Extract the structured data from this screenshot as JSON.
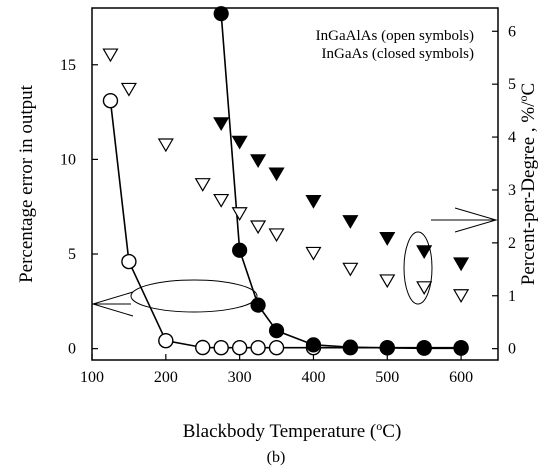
{
  "chart_data": {
    "type": "scatter",
    "x_axis": {
      "label_main": "Blackbody Temperature (",
      "label_unit_sup": "o",
      "label_unit_tail": "C)",
      "ticks": [
        100,
        200,
        300,
        400,
        500,
        600
      ],
      "range": [
        100,
        650
      ]
    },
    "y_left_axis": {
      "label": "Percentage error in output",
      "ticks": [
        0,
        5,
        10,
        15
      ],
      "range": [
        -0.6,
        18
      ]
    },
    "y_right_axis": {
      "label": "Percent-per-Degree , %/",
      "label_unit_sup": "o",
      "label_unit_tail": "C",
      "ticks": [
        0,
        1,
        2,
        3,
        4,
        5,
        6
      ],
      "range": [
        -0.2146,
        6.44
      ]
    },
    "legend": {
      "line1": "InGaAlAs (open symbols)",
      "line2": "InGaAs (closed symbols)",
      "position": "top-right"
    },
    "series": [
      {
        "name": "InGaAlAs",
        "kind": "percentage-error",
        "axis": "left",
        "symbol": "open-circle",
        "connected": true,
        "points": [
          {
            "x": 125,
            "y": 13.1
          },
          {
            "x": 150,
            "y": 4.6
          },
          {
            "x": 200,
            "y": 0.42
          },
          {
            "x": 250,
            "y": 0.06
          },
          {
            "x": 275,
            "y": 0.05
          },
          {
            "x": 300,
            "y": 0.05
          },
          {
            "x": 325,
            "y": 0.05
          },
          {
            "x": 350,
            "y": 0.05
          },
          {
            "x": 400,
            "y": 0.05
          },
          {
            "x": 450,
            "y": 0.05
          },
          {
            "x": 500,
            "y": 0.05
          },
          {
            "x": 550,
            "y": 0.05
          },
          {
            "x": 600,
            "y": 0.05
          }
        ]
      },
      {
        "name": "InGaAs",
        "kind": "percentage-error",
        "axis": "left",
        "symbol": "filled-circle",
        "connected": true,
        "points": [
          {
            "x": 275,
            "y": 17.7
          },
          {
            "x": 300,
            "y": 5.2
          },
          {
            "x": 325,
            "y": 2.3
          },
          {
            "x": 350,
            "y": 0.95
          },
          {
            "x": 400,
            "y": 0.2
          },
          {
            "x": 450,
            "y": 0.08
          },
          {
            "x": 500,
            "y": 0.04
          },
          {
            "x": 550,
            "y": 0.02
          },
          {
            "x": 600,
            "y": 0.02
          }
        ]
      },
      {
        "name": "InGaAlAs",
        "kind": "percent-per-degree",
        "axis": "right",
        "symbol": "open-triangle-down",
        "connected": false,
        "points": [
          {
            "x": 125,
            "y": 5.55
          },
          {
            "x": 150,
            "y": 4.9
          },
          {
            "x": 200,
            "y": 3.85
          },
          {
            "x": 250,
            "y": 3.1
          },
          {
            "x": 275,
            "y": 2.8
          },
          {
            "x": 300,
            "y": 2.55
          },
          {
            "x": 325,
            "y": 2.3
          },
          {
            "x": 350,
            "y": 2.15
          },
          {
            "x": 400,
            "y": 1.8
          },
          {
            "x": 450,
            "y": 1.5
          },
          {
            "x": 500,
            "y": 1.28
          },
          {
            "x": 550,
            "y": 1.15
          },
          {
            "x": 600,
            "y": 1.0
          }
        ]
      },
      {
        "name": "InGaAs",
        "kind": "percent-per-degree",
        "axis": "right",
        "symbol": "filled-triangle-down",
        "connected": false,
        "points": [
          {
            "x": 275,
            "y": 4.25
          },
          {
            "x": 300,
            "y": 3.9
          },
          {
            "x": 325,
            "y": 3.55
          },
          {
            "x": 350,
            "y": 3.3
          },
          {
            "x": 400,
            "y": 2.78
          },
          {
            "x": 450,
            "y": 2.4
          },
          {
            "x": 500,
            "y": 2.08
          },
          {
            "x": 550,
            "y": 1.83
          },
          {
            "x": 600,
            "y": 1.6
          }
        ]
      }
    ],
    "caption": "(b)",
    "grid": false
  },
  "colors": {
    "axis": "#000000",
    "marker": "#000000",
    "background": "#ffffff"
  }
}
